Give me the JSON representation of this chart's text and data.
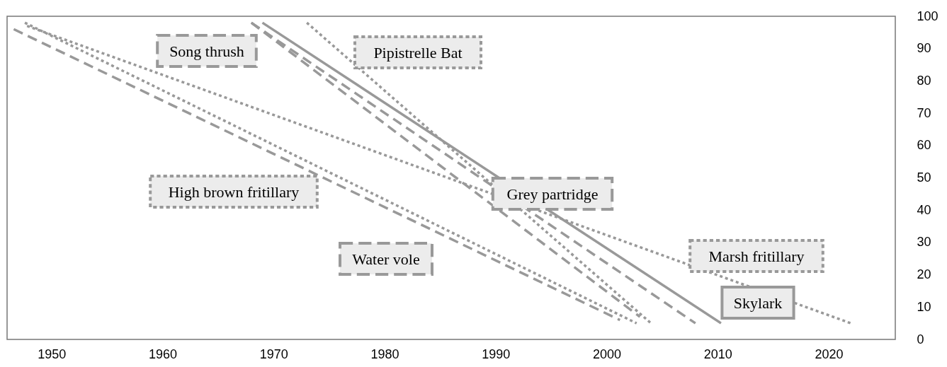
{
  "chart_data": {
    "type": "line",
    "xlim": [
      1946,
      2026
    ],
    "xticks": [
      1950,
      1960,
      1970,
      1980,
      1990,
      2000,
      2010,
      2020
    ],
    "ylim": [
      0,
      100
    ],
    "yticks": [
      0,
      10,
      20,
      30,
      40,
      50,
      60,
      70,
      80,
      90,
      100
    ],
    "grid": false,
    "marker": "none",
    "series": [
      {
        "name": "Song thrush",
        "color": "#999999",
        "line_style": "dashed",
        "x": [
          1968,
          2003
        ],
        "values": [
          98,
          7
        ]
      },
      {
        "name": "Pipistrelle Bat",
        "color": "#999999",
        "line_style": "dotted",
        "x": [
          1973,
          2004
        ],
        "values": [
          98,
          5
        ]
      },
      {
        "name": "Grey partridge",
        "color": "#999999",
        "line_style": "dashed",
        "x": [
          1968,
          2008
        ],
        "values": [
          98,
          5
        ]
      },
      {
        "name": "High brown fritillary",
        "color": "#999999",
        "line_style": "dotted",
        "x": [
          1947.6,
          2002.7
        ],
        "values": [
          98,
          5
        ]
      },
      {
        "name": "Water vole",
        "color": "#999999",
        "line_style": "dashed",
        "x": [
          1946.6,
          2001.2
        ],
        "values": [
          96,
          6
        ]
      },
      {
        "name": "Marsh fritillary",
        "color": "#999999",
        "line_style": "dotted",
        "x": [
          1947.8,
          2022
        ],
        "values": [
          97,
          5
        ]
      },
      {
        "name": "Skylark",
        "color": "#999999",
        "line_style": "solid",
        "x": [
          1969,
          2010.3
        ],
        "values": [
          98,
          5
        ]
      }
    ]
  }
}
